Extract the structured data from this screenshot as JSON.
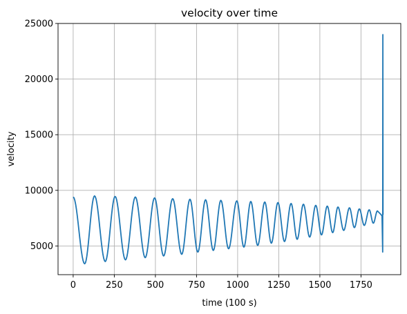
{
  "chart_data": {
    "type": "line",
    "title": "velocity over time",
    "xlabel": "time (100 s)",
    "ylabel": "velocity",
    "xlim": [
      -92,
      1992
    ],
    "ylim": [
      2420,
      25000
    ],
    "xticks": [
      0,
      250,
      500,
      750,
      1000,
      1250,
      1500,
      1750
    ],
    "yticks": [
      5000,
      10000,
      15000,
      20000,
      25000
    ],
    "grid": true,
    "series": [
      {
        "color": "#1f77b4",
        "peaks": [
          [
            0,
            9400
          ],
          [
            130,
            9500
          ],
          [
            255,
            9450
          ],
          [
            378,
            9400
          ],
          [
            495,
            9320
          ],
          [
            605,
            9250
          ],
          [
            710,
            9200
          ],
          [
            805,
            9150
          ],
          [
            898,
            9100
          ],
          [
            995,
            9050
          ],
          [
            1080,
            9000
          ],
          [
            1165,
            8950
          ],
          [
            1245,
            8900
          ],
          [
            1325,
            8820
          ],
          [
            1400,
            8750
          ],
          [
            1475,
            8650
          ],
          [
            1545,
            8580
          ],
          [
            1610,
            8500
          ],
          [
            1680,
            8430
          ],
          [
            1740,
            8330
          ],
          [
            1800,
            8250
          ],
          [
            1850,
            8150
          ]
        ],
        "troughs": [
          [
            70,
            3400
          ],
          [
            195,
            3600
          ],
          [
            318,
            3750
          ],
          [
            438,
            3950
          ],
          [
            550,
            4100
          ],
          [
            660,
            4250
          ],
          [
            758,
            4450
          ],
          [
            852,
            4600
          ],
          [
            945,
            4750
          ],
          [
            1038,
            4900
          ],
          [
            1122,
            5050
          ],
          [
            1205,
            5250
          ],
          [
            1285,
            5400
          ],
          [
            1362,
            5600
          ],
          [
            1438,
            5800
          ],
          [
            1510,
            6000
          ],
          [
            1578,
            6200
          ],
          [
            1645,
            6400
          ],
          [
            1710,
            6650
          ],
          [
            1770,
            6850
          ],
          [
            1825,
            7050
          ]
        ],
        "end": [
          [
            1870,
            7850
          ],
          [
            1878,
            7700
          ],
          [
            1882,
            4450
          ],
          [
            1883,
            24000
          ],
          [
            1884,
            7800
          ]
        ]
      }
    ]
  }
}
